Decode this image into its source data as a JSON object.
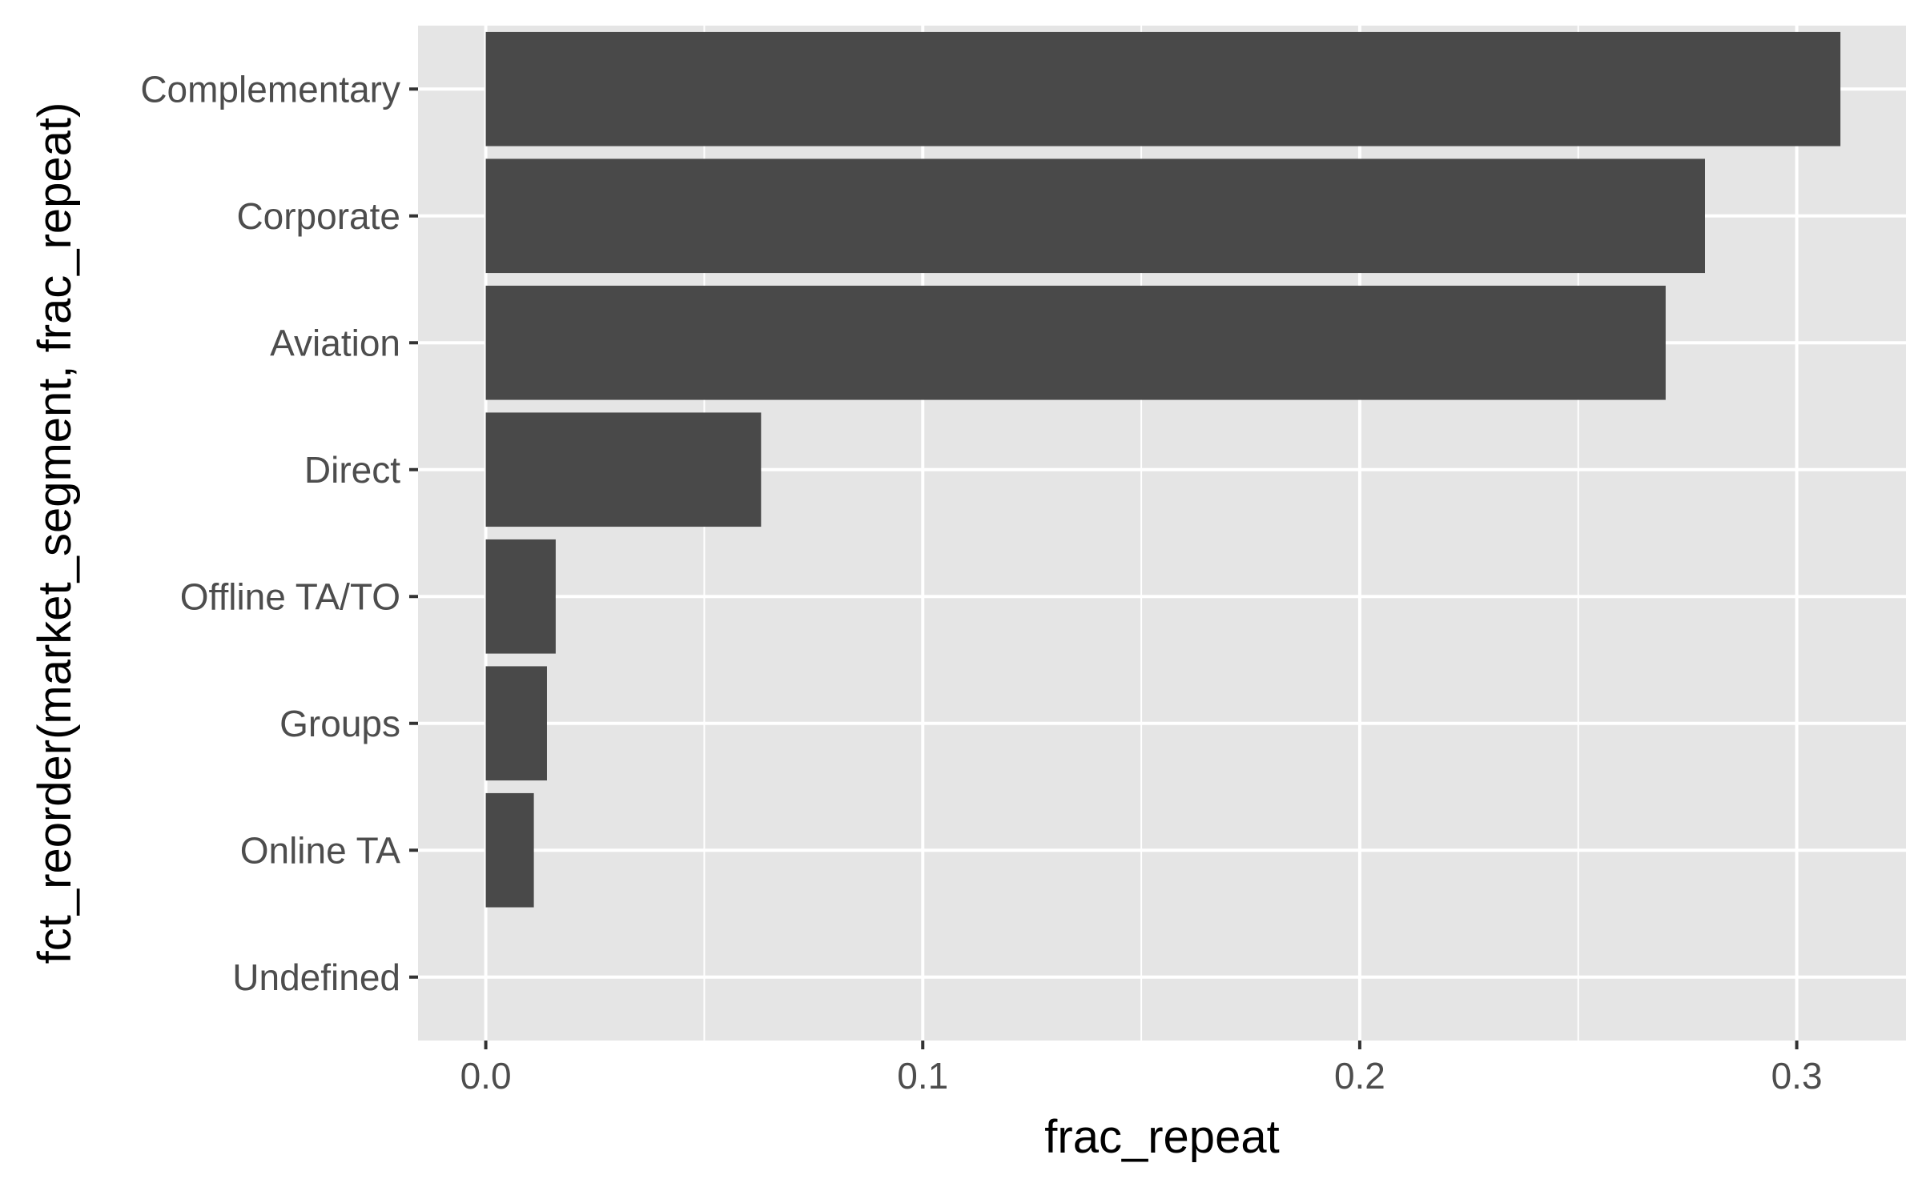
{
  "chart_data": {
    "type": "bar",
    "orientation": "horizontal",
    "title": "",
    "xlabel": "frac_repeat",
    "ylabel": "fct_reorder(market_segment, frac_repeat)",
    "categories": [
      "Complementary",
      "Corporate",
      "Aviation",
      "Direct",
      "Offline TA/TO",
      "Groups",
      "Online TA",
      "Undefined"
    ],
    "values": [
      0.31,
      0.279,
      0.27,
      0.063,
      0.016,
      0.014,
      0.011,
      0.0
    ],
    "xlim": [
      -0.0155,
      0.325
    ],
    "x_ticks": [
      0.0,
      0.1,
      0.2,
      0.3
    ],
    "x_tick_labels": [
      "0.0",
      "0.1",
      "0.2",
      "0.3"
    ],
    "x_minor_ticks": [
      0.05,
      0.15,
      0.25
    ],
    "grid": true,
    "legend": "none",
    "colors": {
      "bar": "#494949",
      "panel_background": "#e5e5e5",
      "grid": "#ffffff",
      "tick_label": "#4d4d4d",
      "tick_mark": "#333333",
      "axis_title": "#000000"
    }
  }
}
